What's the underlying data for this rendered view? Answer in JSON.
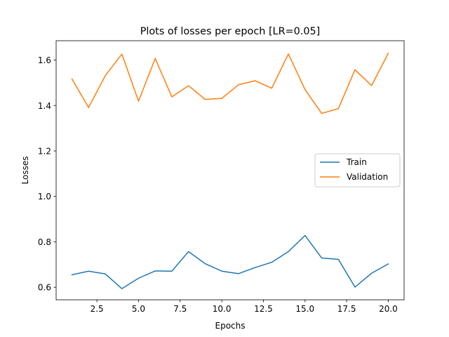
{
  "chart_data": {
    "type": "line",
    "title": "Plots of losses per epoch [LR=0.05]",
    "xlabel": "Epochs",
    "ylabel": "Losses",
    "xlim": [
      0.05,
      20.95
    ],
    "ylim": [
      0.545,
      1.685
    ],
    "xticks": [
      2.5,
      5.0,
      7.5,
      10.0,
      12.5,
      15.0,
      17.5,
      20.0
    ],
    "xtick_labels": [
      "2.5",
      "5.0",
      "7.5",
      "10.0",
      "12.5",
      "15.0",
      "17.5",
      "20.0"
    ],
    "yticks": [
      0.6,
      0.8,
      1.0,
      1.2,
      1.4,
      1.6
    ],
    "ytick_labels": [
      "0.6",
      "0.8",
      "1.0",
      "1.2",
      "1.4",
      "1.6"
    ],
    "grid": false,
    "legend_position": "center-right",
    "x": [
      1,
      2,
      3,
      4,
      5,
      6,
      7,
      8,
      9,
      10,
      11,
      12,
      13,
      14,
      15,
      16,
      17,
      18,
      19,
      20
    ],
    "series": [
      {
        "name": "Train",
        "color": "#1f77b4",
        "values": [
          0.655,
          0.671,
          0.659,
          0.594,
          0.64,
          0.672,
          0.671,
          0.757,
          0.704,
          0.671,
          0.66,
          0.687,
          0.71,
          0.757,
          0.828,
          0.729,
          0.723,
          0.601,
          0.662,
          0.703
        ]
      },
      {
        "name": "Validation",
        "color": "#ff7f0e",
        "values": [
          1.517,
          1.391,
          1.531,
          1.626,
          1.419,
          1.607,
          1.438,
          1.487,
          1.427,
          1.431,
          1.491,
          1.509,
          1.476,
          1.627,
          1.47,
          1.365,
          1.386,
          1.557,
          1.488,
          1.63
        ]
      }
    ]
  }
}
